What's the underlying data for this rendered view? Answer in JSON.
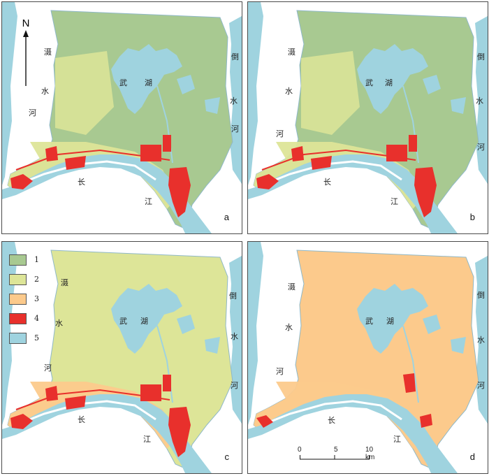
{
  "river_labels": {
    "she": [
      "滠",
      "水",
      "河"
    ],
    "dao": [
      "倒",
      "水",
      "河"
    ],
    "chang": [
      "长",
      "江"
    ],
    "lake": [
      "武",
      "湖"
    ]
  },
  "north_label": "N",
  "panels": [
    {
      "id": "a",
      "letter": "a",
      "base_color": "#a8c991",
      "zone_color": "#dde598"
    },
    {
      "id": "b",
      "letter": "b",
      "base_color": "#a8c991",
      "zone_color": "#dde598"
    },
    {
      "id": "c",
      "letter": "c",
      "base_color": "#dde598",
      "zone_color": "#fcca8c"
    },
    {
      "id": "d",
      "letter": "d",
      "base_color": "#fcca8c",
      "zone_color": "#fcca8c"
    }
  ],
  "legend": [
    {
      "label": "1",
      "color": "#a8c991"
    },
    {
      "label": "2",
      "color": "#dde598"
    },
    {
      "label": "3",
      "color": "#fcca8c"
    },
    {
      "label": "4",
      "color": "#e8302c"
    },
    {
      "label": "5",
      "color": "#9fd3df"
    }
  ],
  "scale": {
    "ticks": [
      "0",
      "5",
      "10 km"
    ]
  },
  "colors": {
    "water": "#9fd3df",
    "urban": "#e8302c",
    "border": "#4a4a4a"
  }
}
